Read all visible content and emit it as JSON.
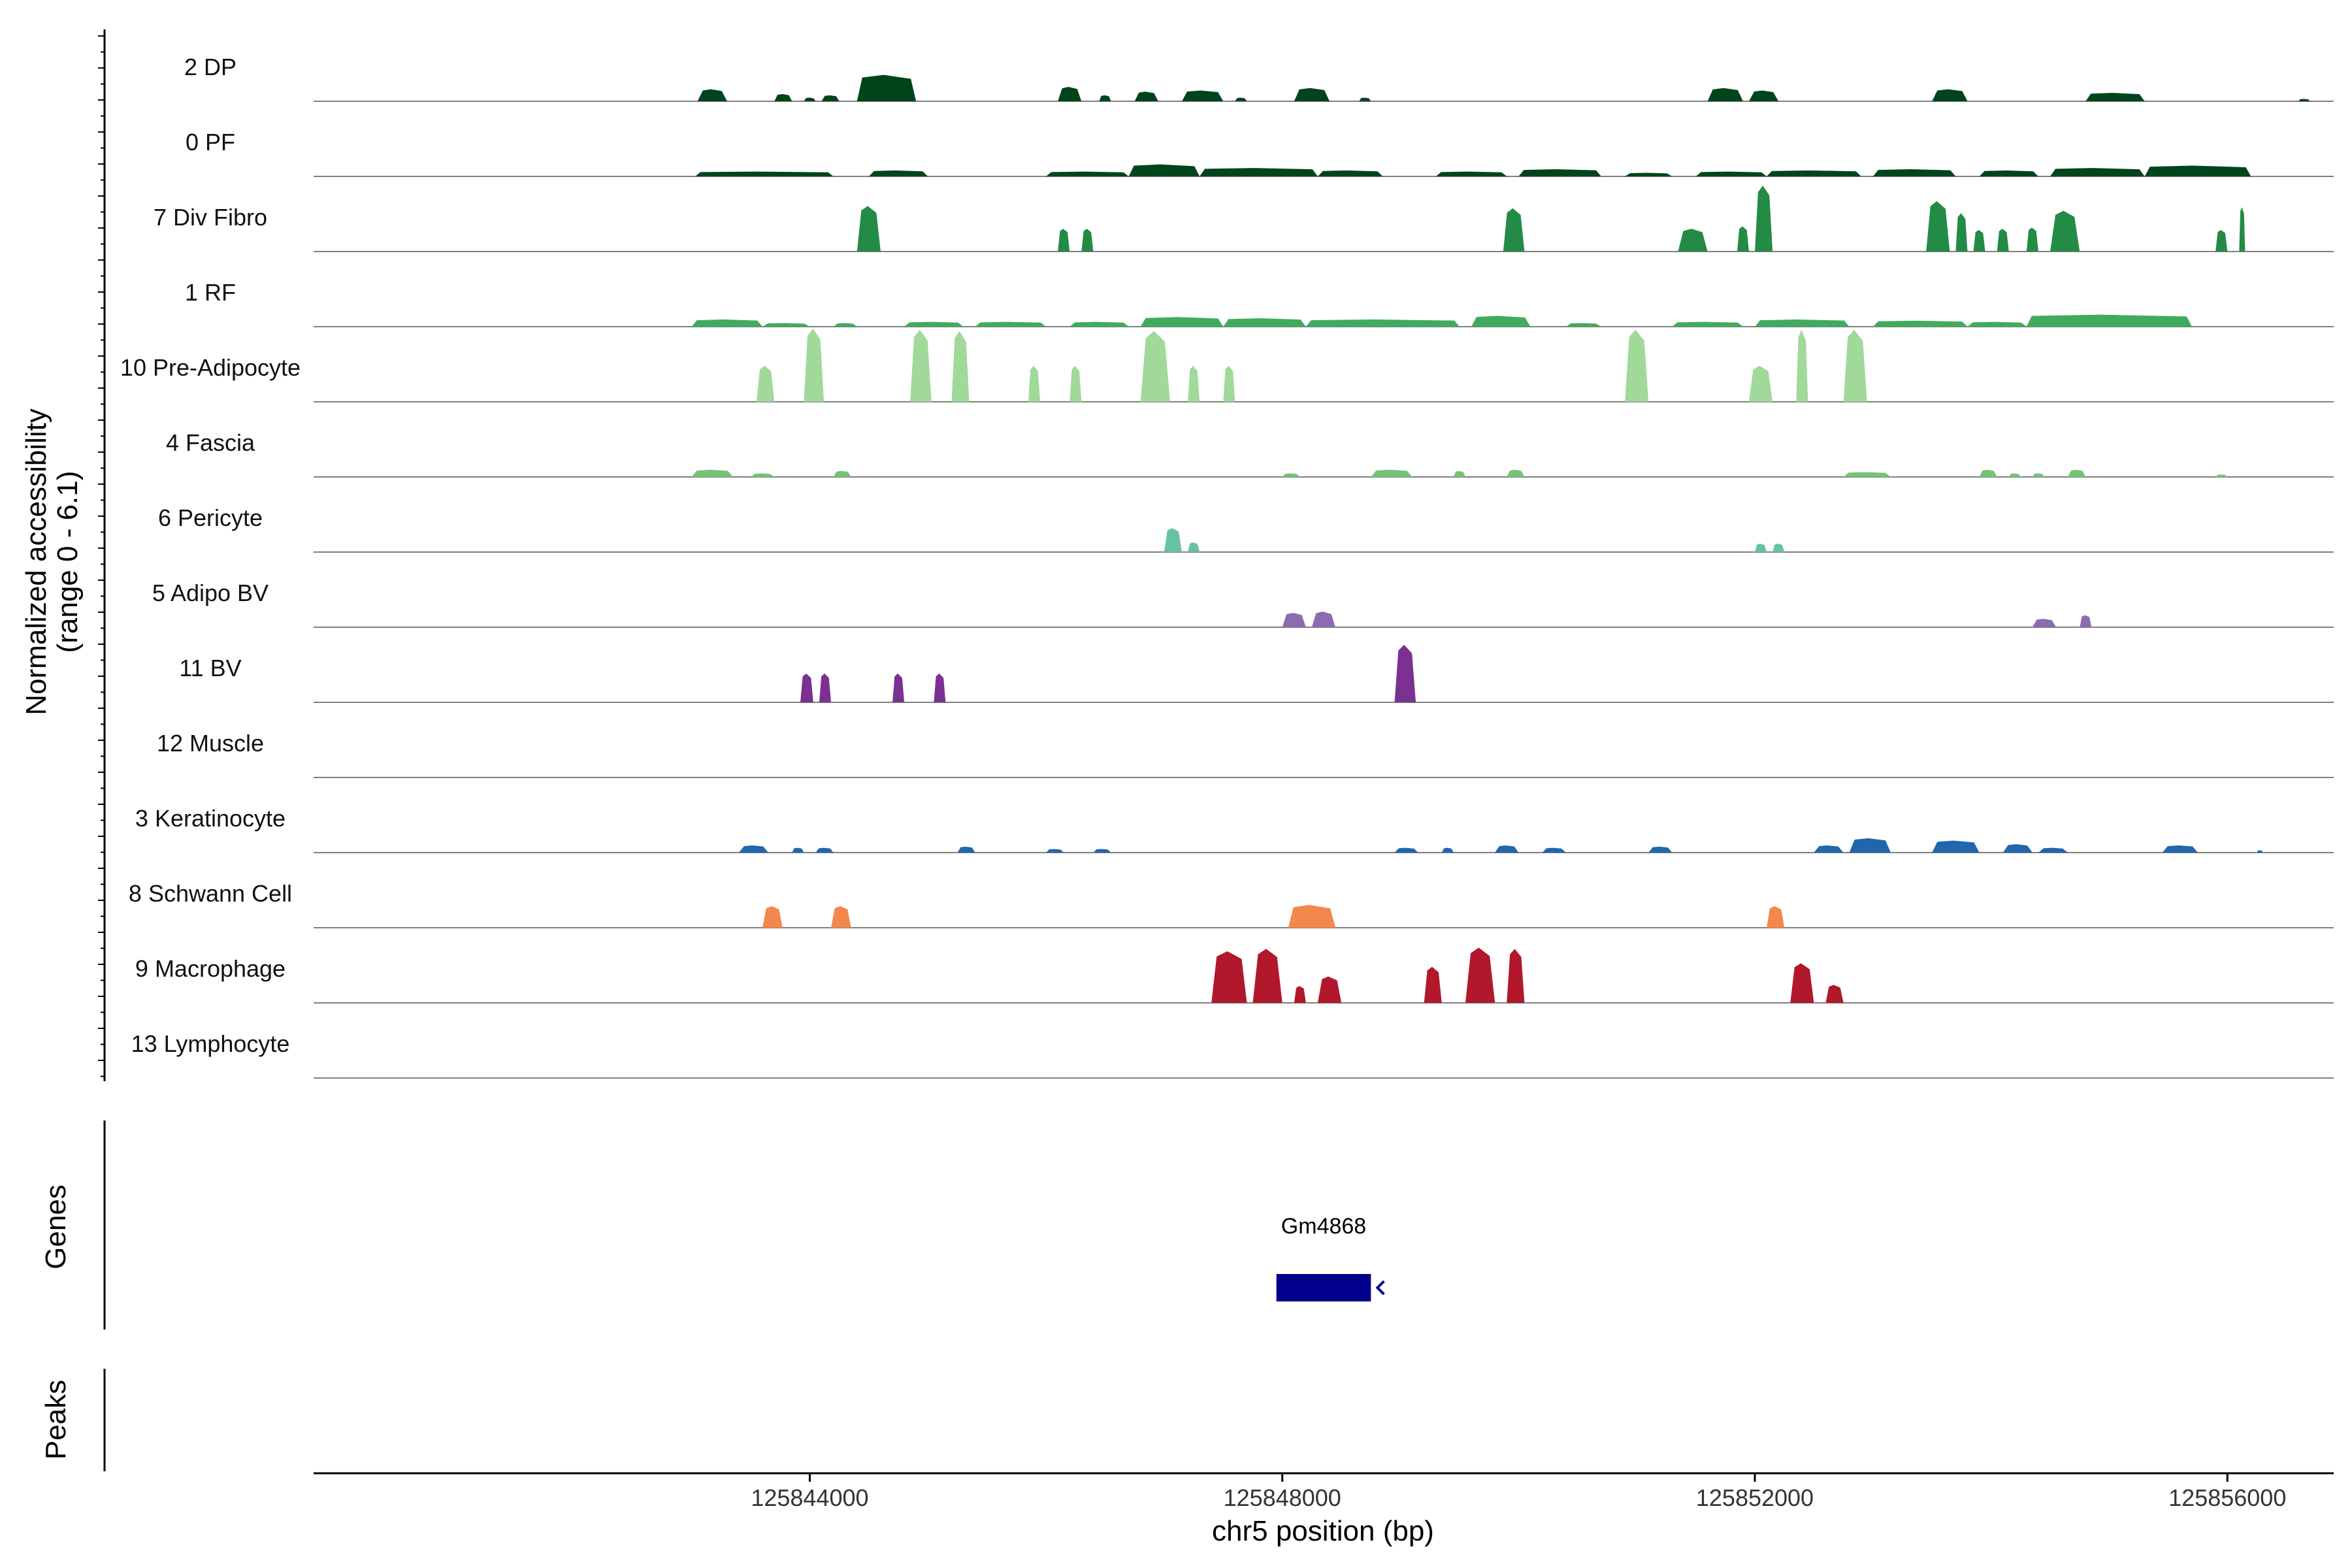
{
  "chart_data": {
    "type": "area",
    "title": "",
    "xlabel": "chr5 position (bp)",
    "ylabel_line1": "Normalized accessibility",
    "ylabel_line2": "(range 0 - 6.1)",
    "xlim": [
      125839800,
      125856900
    ],
    "ylim": [
      0,
      6.1
    ],
    "x_ticks": [
      125844000,
      125848000,
      125852000,
      125856000
    ],
    "x_tick_labels": [
      "125844000",
      "125848000",
      "125852000",
      "125856000"
    ],
    "panels": {
      "genes_label": "Genes",
      "peaks_label": "Peaks"
    },
    "genes": [
      {
        "name": "Gm4868",
        "start": 125847950,
        "end": 125848750,
        "strand": "-",
        "color": "#00008b"
      }
    ],
    "series": [
      {
        "name": "2 DP",
        "color": "#00441b",
        "peaks": [
          [
            125843050,
            125843300,
            1.0
          ],
          [
            125843700,
            125843850,
            0.6
          ],
          [
            125843950,
            125844050,
            0.3
          ],
          [
            125844100,
            125844250,
            0.5
          ],
          [
            125844400,
            125844900,
            2.2
          ],
          [
            125846100,
            125846300,
            1.2
          ],
          [
            125846450,
            125846550,
            0.5
          ],
          [
            125846750,
            125846950,
            0.8
          ],
          [
            125847150,
            125847500,
            0.9
          ],
          [
            125847600,
            125847700,
            0.3
          ],
          [
            125848100,
            125848400,
            1.1
          ],
          [
            125848650,
            125848750,
            0.3
          ],
          [
            125851600,
            125851900,
            1.1
          ],
          [
            125851950,
            125852200,
            0.9
          ],
          [
            125853500,
            125853800,
            1.0
          ],
          [
            125854800,
            125855300,
            0.7
          ],
          [
            125856600,
            125856700,
            0.2
          ]
        ]
      },
      {
        "name": "0 PF",
        "color": "#00441b",
        "peaks": [
          [
            125843030,
            125844200,
            0.4
          ],
          [
            125844500,
            125845000,
            0.5
          ],
          [
            125846000,
            125846700,
            0.4
          ],
          [
            125846700,
            125847300,
            1.0
          ],
          [
            125847300,
            125848300,
            0.7
          ],
          [
            125848300,
            125848850,
            0.5
          ],
          [
            125849300,
            125849900,
            0.4
          ],
          [
            125850000,
            125850700,
            0.6
          ],
          [
            125850900,
            125851300,
            0.3
          ],
          [
            125851500,
            125852100,
            0.4
          ],
          [
            125852100,
            125852900,
            0.5
          ],
          [
            125853000,
            125853700,
            0.6
          ],
          [
            125853900,
            125854400,
            0.5
          ],
          [
            125854500,
            125855300,
            0.7
          ],
          [
            125855300,
            125856200,
            0.9
          ]
        ]
      },
      {
        "name": "7 Div Fibro",
        "color": "#238b45",
        "peaks": [
          [
            125844400,
            125844600,
            3.8
          ],
          [
            125846100,
            125846200,
            1.9
          ],
          [
            125846300,
            125846400,
            1.9
          ],
          [
            125849870,
            125850050,
            3.6
          ],
          [
            125851350,
            125851600,
            1.9
          ],
          [
            125851850,
            125851950,
            2.1
          ],
          [
            125852000,
            125852150,
            5.5
          ],
          [
            125853450,
            125853650,
            4.2
          ],
          [
            125853700,
            125853800,
            3.2
          ],
          [
            125853850,
            125853950,
            1.8
          ],
          [
            125854050,
            125854150,
            1.9
          ],
          [
            125854300,
            125854400,
            2.0
          ],
          [
            125854500,
            125854750,
            3.4
          ],
          [
            125855900,
            125856000,
            1.8
          ],
          [
            125856100,
            125856150,
            3.7
          ]
        ]
      },
      {
        "name": "1 RF",
        "color": "#41ab5d",
        "peaks": [
          [
            125843000,
            125843600,
            0.6
          ],
          [
            125843600,
            125844000,
            0.3
          ],
          [
            125844200,
            125844400,
            0.3
          ],
          [
            125844800,
            125845300,
            0.4
          ],
          [
            125845400,
            125846000,
            0.4
          ],
          [
            125846200,
            125846700,
            0.4
          ],
          [
            125846800,
            125847500,
            0.8
          ],
          [
            125847500,
            125848200,
            0.7
          ],
          [
            125848200,
            125849500,
            0.6
          ],
          [
            125849600,
            125850100,
            0.9
          ],
          [
            125850400,
            125850700,
            0.3
          ],
          [
            125851300,
            125851900,
            0.4
          ],
          [
            125852000,
            125852800,
            0.6
          ],
          [
            125853000,
            125853800,
            0.5
          ],
          [
            125853800,
            125854300,
            0.4
          ],
          [
            125854300,
            125855700,
            1.0
          ]
        ]
      },
      {
        "name": "10 Pre-Adipocyte",
        "color": "#a1d99b",
        "peaks": [
          [
            125843550,
            125843700,
            3.0
          ],
          [
            125843950,
            125844120,
            6.1
          ],
          [
            125844850,
            125845030,
            6.0
          ],
          [
            125845200,
            125845350,
            5.9
          ],
          [
            125845850,
            125845950,
            3.0
          ],
          [
            125846200,
            125846300,
            3.0
          ],
          [
            125846800,
            125847050,
            5.9
          ],
          [
            125847200,
            125847300,
            3.0
          ],
          [
            125847500,
            125847600,
            3.0
          ],
          [
            125850900,
            125851100,
            6.0
          ],
          [
            125851950,
            125852150,
            3.0
          ],
          [
            125852350,
            125852450,
            6.0
          ],
          [
            125852750,
            125852950,
            6.0
          ]
        ]
      },
      {
        "name": "4 Fascia",
        "color": "#74c476",
        "peaks": [
          [
            125843000,
            125843350,
            0.6
          ],
          [
            125843500,
            125843700,
            0.3
          ],
          [
            125844200,
            125844350,
            0.5
          ],
          [
            125848000,
            125848150,
            0.3
          ],
          [
            125848750,
            125849100,
            0.6
          ],
          [
            125849450,
            125849550,
            0.5
          ],
          [
            125849900,
            125850050,
            0.6
          ],
          [
            125852750,
            125853150,
            0.4
          ],
          [
            125853900,
            125854050,
            0.6
          ],
          [
            125854150,
            125854250,
            0.3
          ],
          [
            125854350,
            125854450,
            0.3
          ],
          [
            125854650,
            125854800,
            0.6
          ],
          [
            125855900,
            125856000,
            0.2
          ]
        ]
      },
      {
        "name": "6 Pericyte",
        "color": "#66c2a4",
        "peaks": [
          [
            125847000,
            125847150,
            2.0
          ],
          [
            125847200,
            125847300,
            0.8
          ],
          [
            125852000,
            125852100,
            0.7
          ],
          [
            125852150,
            125852250,
            0.7
          ]
        ]
      },
      {
        "name": "5 Adipo BV",
        "color": "#8c6bb1",
        "peaks": [
          [
            125848000,
            125848200,
            1.2
          ],
          [
            125848250,
            125848450,
            1.3
          ],
          [
            125854350,
            125854550,
            0.7
          ],
          [
            125854750,
            125854850,
            1.0
          ]
        ]
      },
      {
        "name": "11 BV",
        "color": "#7a3191",
        "peaks": [
          [
            125843920,
            125844030,
            2.4
          ],
          [
            125844080,
            125844180,
            2.4
          ],
          [
            125844700,
            125844800,
            2.4
          ],
          [
            125845050,
            125845150,
            2.4
          ],
          [
            125848950,
            125849130,
            4.8
          ]
        ]
      },
      {
        "name": "12 Muscle",
        "color": "#7a3191",
        "peaks": []
      },
      {
        "name": "3 Keratinocyte",
        "color": "#2166ac",
        "peaks": [
          [
            125843400,
            125843650,
            0.6
          ],
          [
            125843850,
            125843950,
            0.4
          ],
          [
            125844050,
            125844200,
            0.4
          ],
          [
            125845250,
            125845400,
            0.5
          ],
          [
            125846000,
            125846150,
            0.3
          ],
          [
            125846400,
            125846550,
            0.3
          ],
          [
            125848950,
            125849150,
            0.4
          ],
          [
            125849350,
            125849450,
            0.4
          ],
          [
            125849800,
            125850000,
            0.6
          ],
          [
            125850200,
            125850400,
            0.4
          ],
          [
            125851100,
            125851300,
            0.5
          ],
          [
            125852500,
            125852750,
            0.6
          ],
          [
            125852800,
            125853150,
            1.2
          ],
          [
            125853500,
            125853900,
            1.0
          ],
          [
            125854100,
            125854350,
            0.7
          ],
          [
            125854400,
            125854650,
            0.4
          ],
          [
            125855450,
            125855750,
            0.6
          ],
          [
            125856250,
            125856300,
            0.2
          ]
        ]
      },
      {
        "name": "8 Schwann Cell",
        "color": "#f4874b",
        "peaks": [
          [
            125843600,
            125843770,
            1.8
          ],
          [
            125844180,
            125844350,
            1.8
          ],
          [
            125848050,
            125848450,
            1.9
          ],
          [
            125852100,
            125852250,
            1.8
          ]
        ]
      },
      {
        "name": "9 Macrophage",
        "color": "#b2182b",
        "peaks": [
          [
            125847400,
            125847700,
            4.3
          ],
          [
            125847750,
            125848000,
            4.5
          ],
          [
            125848100,
            125848200,
            1.4
          ],
          [
            125848300,
            125848500,
            2.2
          ],
          [
            125849200,
            125849350,
            3.0
          ],
          [
            125849550,
            125849800,
            4.6
          ],
          [
            125849900,
            125850050,
            4.5
          ],
          [
            125852300,
            125852500,
            3.3
          ],
          [
            125852600,
            125852750,
            1.5
          ]
        ]
      },
      {
        "name": "13 Lymphocyte",
        "color": "#b2182b",
        "peaks": []
      }
    ]
  }
}
